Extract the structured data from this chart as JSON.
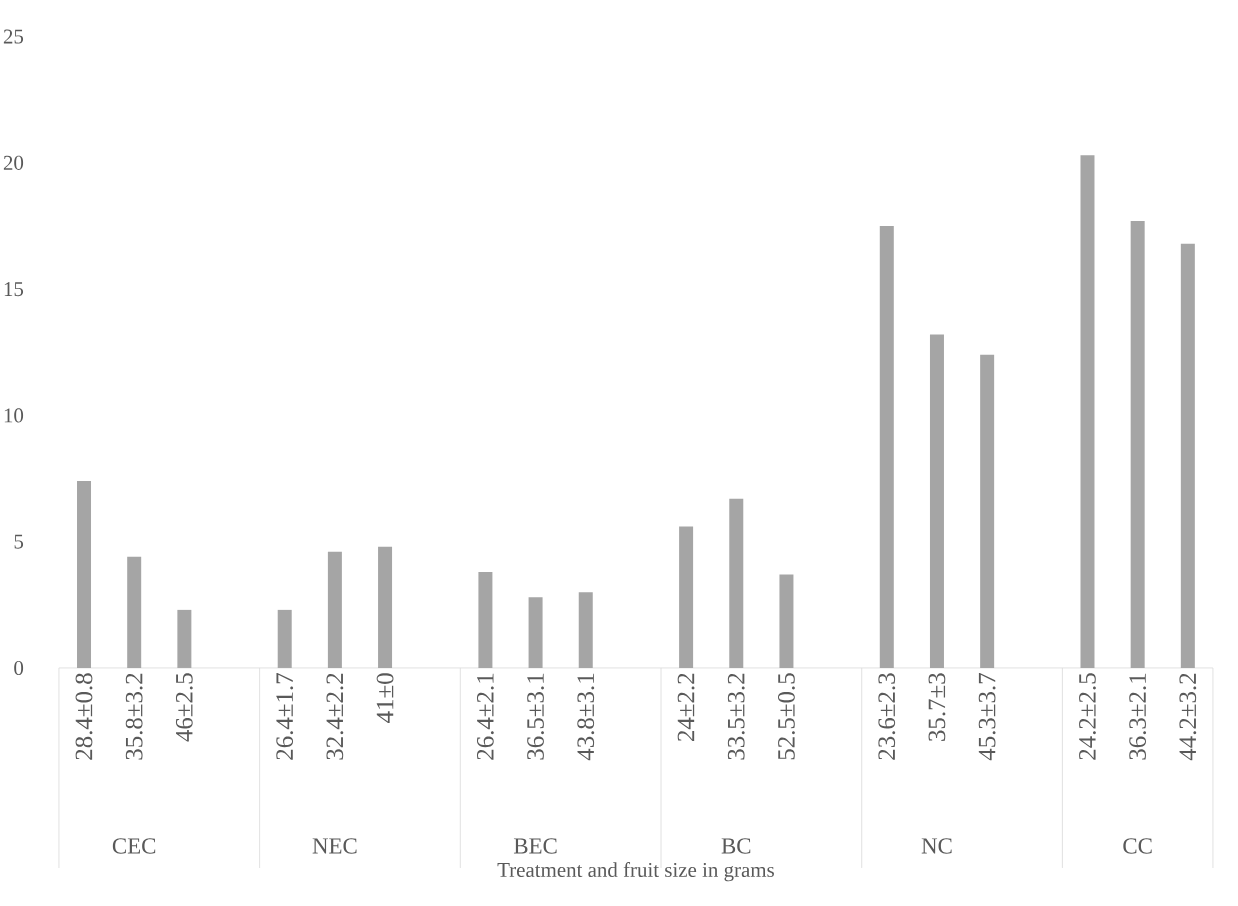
{
  "chart_data": {
    "type": "bar",
    "xlabel": "Treatment and  fruit size in grams",
    "categories": [
      "28.4±0.8",
      "35.8±3.2",
      "46±2.5",
      "26.4±1.7",
      "32.4±2.2",
      "41±0",
      "26.4±2.1",
      "36.5±3.1",
      "43.8±3.1",
      "24±2.2",
      "33.5±3.2",
      "52.5±0.5",
      "23.6±2.3",
      "35.7±3",
      "45.3±3.7",
      "24.2±2.5",
      "36.3±2.1",
      "44.2±3.2"
    ],
    "values": [
      7.4,
      4.4,
      2.3,
      2.3,
      4.6,
      4.8,
      3.8,
      2.8,
      3.0,
      5.6,
      6.7,
      3.7,
      17.5,
      13.2,
      12.4,
      20.3,
      17.7,
      16.8
    ],
    "color": "#a5a5a5",
    "ylim": [
      0,
      25
    ],
    "yticks": [
      0,
      5,
      10,
      15,
      20,
      25
    ],
    "annotations": [
      "CEC",
      "NEC",
      "BEC",
      "BC",
      "NC",
      "CC"
    ]
  }
}
